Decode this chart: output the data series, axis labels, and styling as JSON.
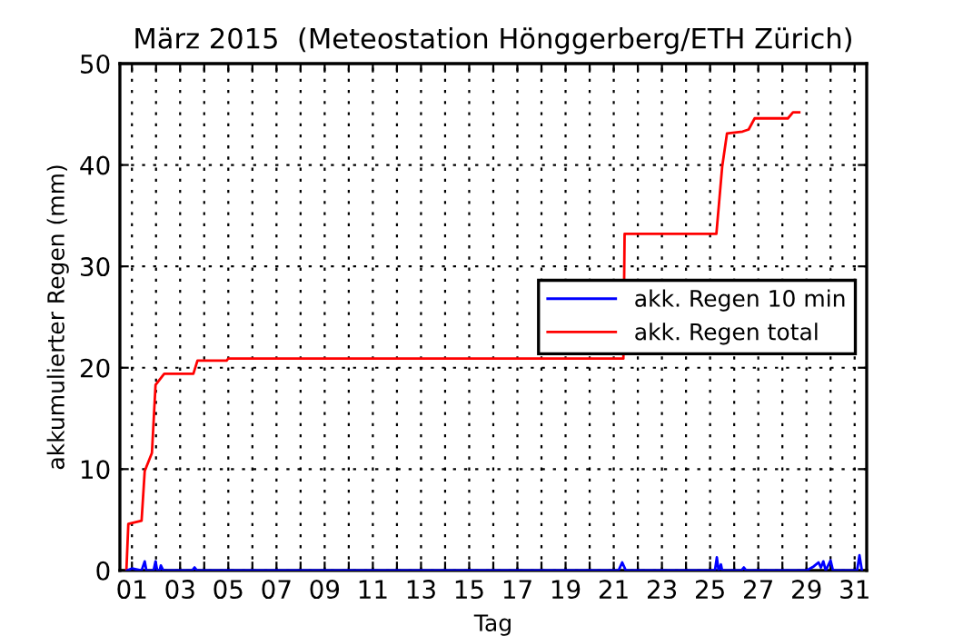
{
  "chart_data": {
    "type": "line",
    "title": "März 2015  (Meteostation Hönggerberg/ETH Zürich)",
    "xlabel": "Tag",
    "ylabel": "akkumulierter Regen (mm)",
    "series": [
      {
        "name": "akk. Regen 10 min",
        "color": "#0000ff",
        "x": [
          0.8,
          1.0,
          1.4,
          1.53,
          1.6,
          1.9,
          1.98,
          2.05,
          2.15,
          2.2,
          2.3,
          3.5,
          3.6,
          3.7,
          21.2,
          21.35,
          21.5,
          25.2,
          25.28,
          25.35,
          25.45,
          25.5,
          25.6,
          26.3,
          26.4,
          26.5,
          29.0,
          29.3,
          29.5,
          29.6,
          29.7,
          29.8,
          30.0,
          30.1,
          31.1,
          31.2,
          31.3
        ],
        "values": [
          0,
          0.2,
          0,
          0.9,
          0,
          0,
          0.9,
          0,
          0,
          0.5,
          0,
          0,
          0.3,
          0,
          0,
          0.8,
          0,
          0,
          1.3,
          0,
          0.6,
          0,
          0,
          0,
          0.3,
          0,
          0,
          0.4,
          0.8,
          0.3,
          0.9,
          0,
          1.0,
          0,
          0,
          1.5,
          0
        ]
      },
      {
        "name": "akk. Regen total",
        "color": "#ff0000",
        "x": [
          0.77,
          0.85,
          1.4,
          1.53,
          1.83,
          1.98,
          2.34,
          3.55,
          3.72,
          4.93,
          5.0,
          20.93,
          21.4,
          21.45,
          25.26,
          25.5,
          25.7,
          26.35,
          26.6,
          26.85,
          28.23,
          28.44,
          28.7
        ],
        "values": [
          0,
          4.6,
          4.9,
          9.8,
          11.6,
          18.3,
          19.4,
          19.4,
          20.7,
          20.7,
          20.9,
          20.9,
          20.9,
          33.2,
          33.2,
          39.8,
          43.1,
          43.3,
          43.5,
          44.6,
          44.6,
          45.2,
          45.2
        ]
      }
    ],
    "xlim": [
      0.5,
      31.5
    ],
    "xticks": [
      {
        "value": 1,
        "label": "01"
      },
      {
        "value": 2,
        "label": null
      },
      {
        "value": 3,
        "label": "03"
      },
      {
        "value": 4,
        "label": null
      },
      {
        "value": 5,
        "label": "05"
      },
      {
        "value": 6,
        "label": null
      },
      {
        "value": 7,
        "label": "07"
      },
      {
        "value": 8,
        "label": null
      },
      {
        "value": 9,
        "label": "09"
      },
      {
        "value": 10,
        "label": null
      },
      {
        "value": 11,
        "label": "11"
      },
      {
        "value": 12,
        "label": null
      },
      {
        "value": 13,
        "label": "13"
      },
      {
        "value": 14,
        "label": null
      },
      {
        "value": 15,
        "label": "15"
      },
      {
        "value": 16,
        "label": null
      },
      {
        "value": 17,
        "label": "17"
      },
      {
        "value": 18,
        "label": null
      },
      {
        "value": 19,
        "label": "19"
      },
      {
        "value": 20,
        "label": null
      },
      {
        "value": 21,
        "label": "21"
      },
      {
        "value": 22,
        "label": null
      },
      {
        "value": 23,
        "label": "23"
      },
      {
        "value": 24,
        "label": null
      },
      {
        "value": 25,
        "label": "25"
      },
      {
        "value": 26,
        "label": null
      },
      {
        "value": 27,
        "label": "27"
      },
      {
        "value": 28,
        "label": null
      },
      {
        "value": 29,
        "label": "29"
      },
      {
        "value": 30,
        "label": null
      },
      {
        "value": 31,
        "label": "31"
      }
    ],
    "ylim": [
      0,
      50
    ],
    "yticks": [
      0,
      10,
      20,
      30,
      40,
      50
    ],
    "grid": true,
    "legend": "right",
    "line_style": "solid",
    "marker": "none"
  }
}
